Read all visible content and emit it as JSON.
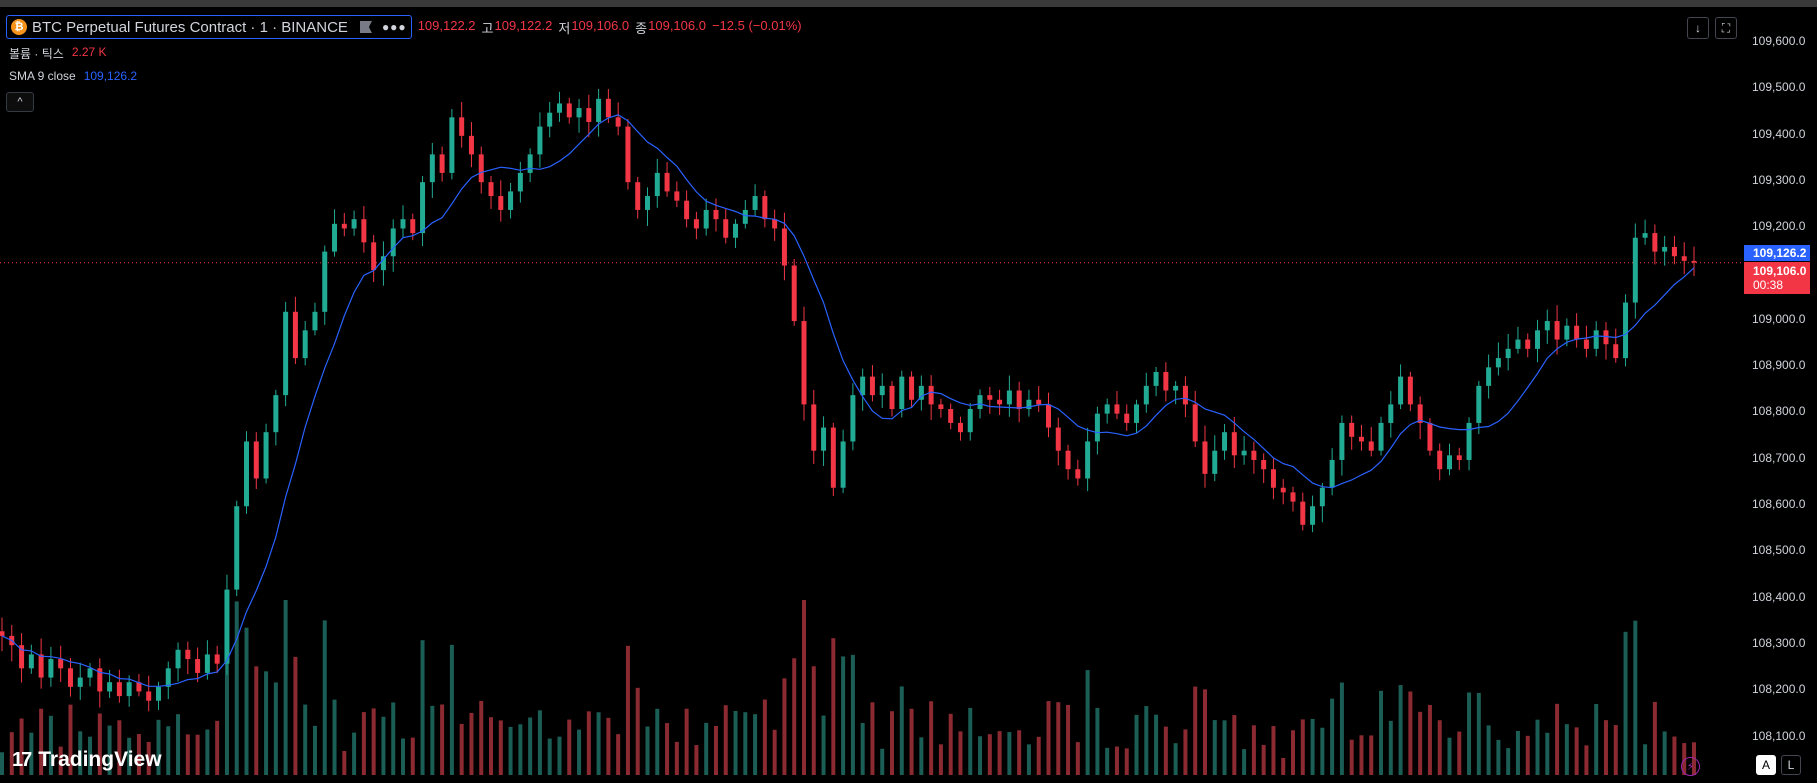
{
  "symbol": {
    "title": "BTC Perpetual Futures Contract · 1 · BINANCE",
    "logo_letter": "₿"
  },
  "ohlc": {
    "open_value": "109,122.2",
    "high_label": "고",
    "high_value": "109,122.2",
    "low_label": "저",
    "low_value": "109,106.0",
    "close_label": "종",
    "close_value": "109,106.0",
    "change": "−12.5 (−0.01%)"
  },
  "indicators": {
    "volume_name": "볼륨 · 틱스",
    "volume_value": "2.27 K",
    "sma_name": "SMA 9 close",
    "sma_value": "109,126.2"
  },
  "price_axis": {
    "ticks": [
      "109,600.0",
      "109,500.0",
      "109,400.0",
      "109,300.0",
      "109,200.0",
      "109,100.0",
      "109,000.0",
      "108,900.0",
      "108,800.0",
      "108,700.0",
      "108,600.0",
      "108,500.0",
      "108,400.0",
      "108,300.0",
      "108,200.0",
      "108,100.0"
    ],
    "sma_label": "109,126.2",
    "last_price": "109,106.0",
    "countdown": "00:38"
  },
  "buttons": {
    "collapse": "^",
    "download": "↓",
    "fullscreen": "⛶",
    "auto": "A",
    "log": "L",
    "bolt": "⚡"
  },
  "branding": {
    "logo_mark": "17",
    "name": "TradingView"
  },
  "colors": {
    "up": "#22ab94",
    "down": "#f23645",
    "sma": "#2962ff",
    "up_volume": "#1b5e55",
    "down_volume": "#8c2a32"
  },
  "chart_data": {
    "type": "candlestick",
    "title": "BTC Perpetual Futures Contract · 1 · BINANCE",
    "ylim": [
      108050,
      109650
    ],
    "grid": false,
    "series_close": [
      108300,
      108280,
      108230,
      108260,
      108210,
      108250,
      108230,
      108190,
      108210,
      108230,
      108180,
      108200,
      108170,
      108200,
      108180,
      108160,
      108190,
      108230,
      108270,
      108250,
      108220,
      108260,
      108240,
      108400,
      108580,
      108720,
      108640,
      108740,
      108820,
      109000,
      108900,
      108960,
      109000,
      109130,
      109190,
      109180,
      109200,
      109150,
      109090,
      109120,
      109180,
      109200,
      109170,
      109280,
      109340,
      109300,
      109420,
      109380,
      109340,
      109280,
      109250,
      109220,
      109260,
      109300,
      109340,
      109400,
      109430,
      109450,
      109420,
      109440,
      109410,
      109460,
      109420,
      109400,
      109280,
      109220,
      109250,
      109300,
      109260,
      109240,
      109200,
      109180,
      109220,
      109200,
      109160,
      109190,
      109220,
      109250,
      109200,
      109180,
      109100,
      108980,
      108800,
      108700,
      108750,
      108620,
      108720,
      108820,
      108860,
      108820,
      108840,
      108790,
      108860,
      108810,
      108840,
      108800,
      108790,
      108760,
      108740,
      108790,
      108820,
      108810,
      108800,
      108830,
      108790,
      108810,
      108800,
      108750,
      108700,
      108660,
      108640,
      108720,
      108780,
      108800,
      108780,
      108760,
      108800,
      108840,
      108870,
      108830,
      108840,
      108800,
      108720,
      108650,
      108700,
      108740,
      108690,
      108700,
      108680,
      108660,
      108620,
      108610,
      108590,
      108540,
      108580,
      108620,
      108680,
      108760,
      108730,
      108720,
      108700,
      108760,
      108800,
      108860,
      108800,
      108760,
      108700,
      108660,
      108690,
      108680,
      108760,
      108840,
      108880,
      108900,
      108920,
      108940,
      108920,
      108960,
      108980,
      108940,
      108970,
      108940,
      108920,
      108960,
      108930,
      108900,
      109020,
      109160,
      109170,
      109130,
      109140,
      109120,
      109110,
      109106
    ],
    "volume_ylim": [
      0,
      400
    ]
  }
}
